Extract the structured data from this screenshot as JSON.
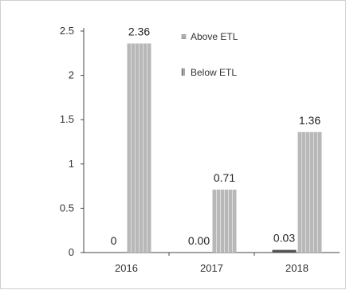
{
  "chart_data": {
    "type": "bar",
    "categories": [
      "2016",
      "2017",
      "2018"
    ],
    "series": [
      {
        "name": "Above ETL",
        "values": [
          0,
          0.0,
          0.03
        ],
        "labels": [
          "0",
          "0.00",
          "0.03"
        ],
        "color": "#555555"
      },
      {
        "name": "Below ETL",
        "values": [
          2.36,
          0.71,
          1.36
        ],
        "labels": [
          "2.36",
          "0.71",
          "1.36"
        ],
        "color": "#b8b8b8"
      }
    ],
    "ylim": [
      0,
      2.5
    ],
    "y_ticks": [
      {
        "value": 0,
        "label": "0"
      },
      {
        "value": 0.5,
        "label": "0.5"
      },
      {
        "value": 1,
        "label": "1"
      },
      {
        "value": 1.5,
        "label": "1.5"
      },
      {
        "value": 2,
        "label": "2"
      },
      {
        "value": 2.5,
        "label": "2.5"
      }
    ],
    "grid": false,
    "legend_position": "top-center",
    "legend_symbols": [
      "≡",
      "⦀"
    ]
  }
}
